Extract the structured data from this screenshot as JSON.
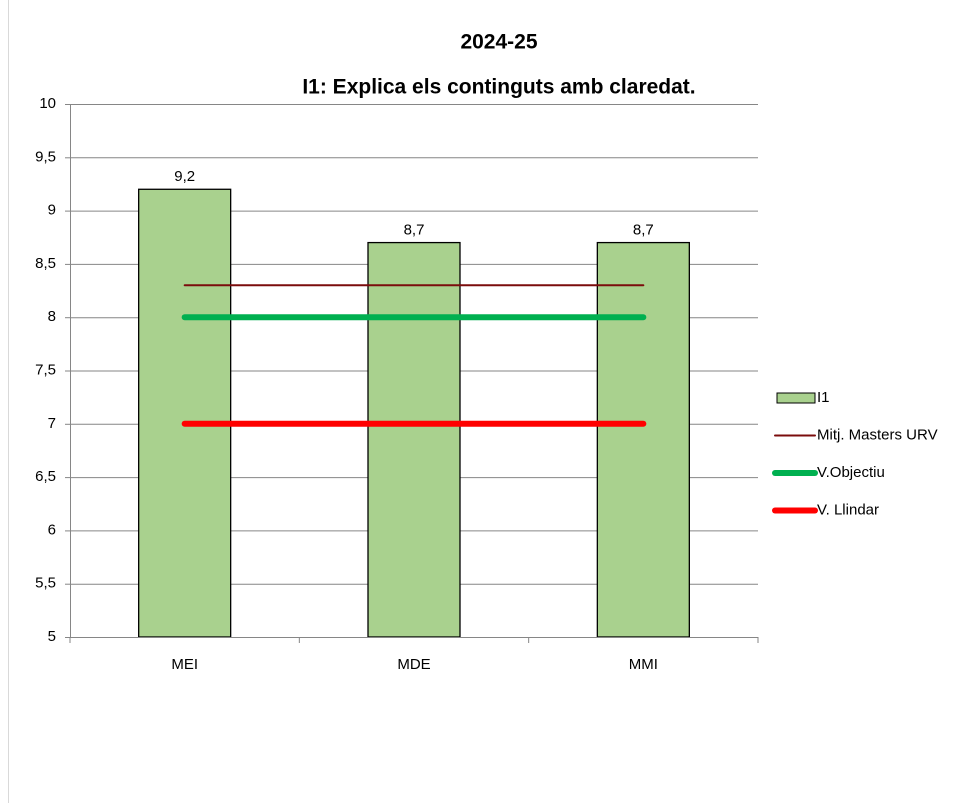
{
  "chart_data": {
    "type": "bar",
    "title": [
      "2024-25",
      "I1: Explica els continguts amb claredat."
    ],
    "categories": [
      "MEI",
      "MDE",
      "MMI"
    ],
    "series": [
      {
        "name": "I1",
        "type": "bar",
        "color": "#a9d18e",
        "values": [
          9.2,
          8.7,
          8.7
        ],
        "value_labels": [
          "9,2",
          "8,7",
          "8,7"
        ]
      },
      {
        "name": "Mitj. Masters URV",
        "type": "line",
        "color": "#7b0c0c",
        "width": 2,
        "values": [
          8.3,
          8.3,
          8.3
        ]
      },
      {
        "name": "V.Objectiu",
        "type": "line",
        "color": "#00b050",
        "width": 6,
        "values": [
          8,
          8,
          8
        ]
      },
      {
        "name": "V. Llindar",
        "type": "line",
        "color": "#ff0000",
        "width": 6,
        "values": [
          7,
          7,
          7
        ]
      }
    ],
    "ylim": [
      5,
      10
    ],
    "yticks": [
      5,
      {
        "value": 5.5,
        "label": "5,5"
      },
      6,
      {
        "value": 6.5,
        "label": "6,5"
      },
      7,
      {
        "value": 7.5,
        "label": "7,5"
      },
      8,
      {
        "value": 8.5,
        "label": "8,5"
      },
      9,
      {
        "value": 9.5,
        "label": "9,5"
      },
      10
    ],
    "grid": true,
    "legend": "right"
  }
}
